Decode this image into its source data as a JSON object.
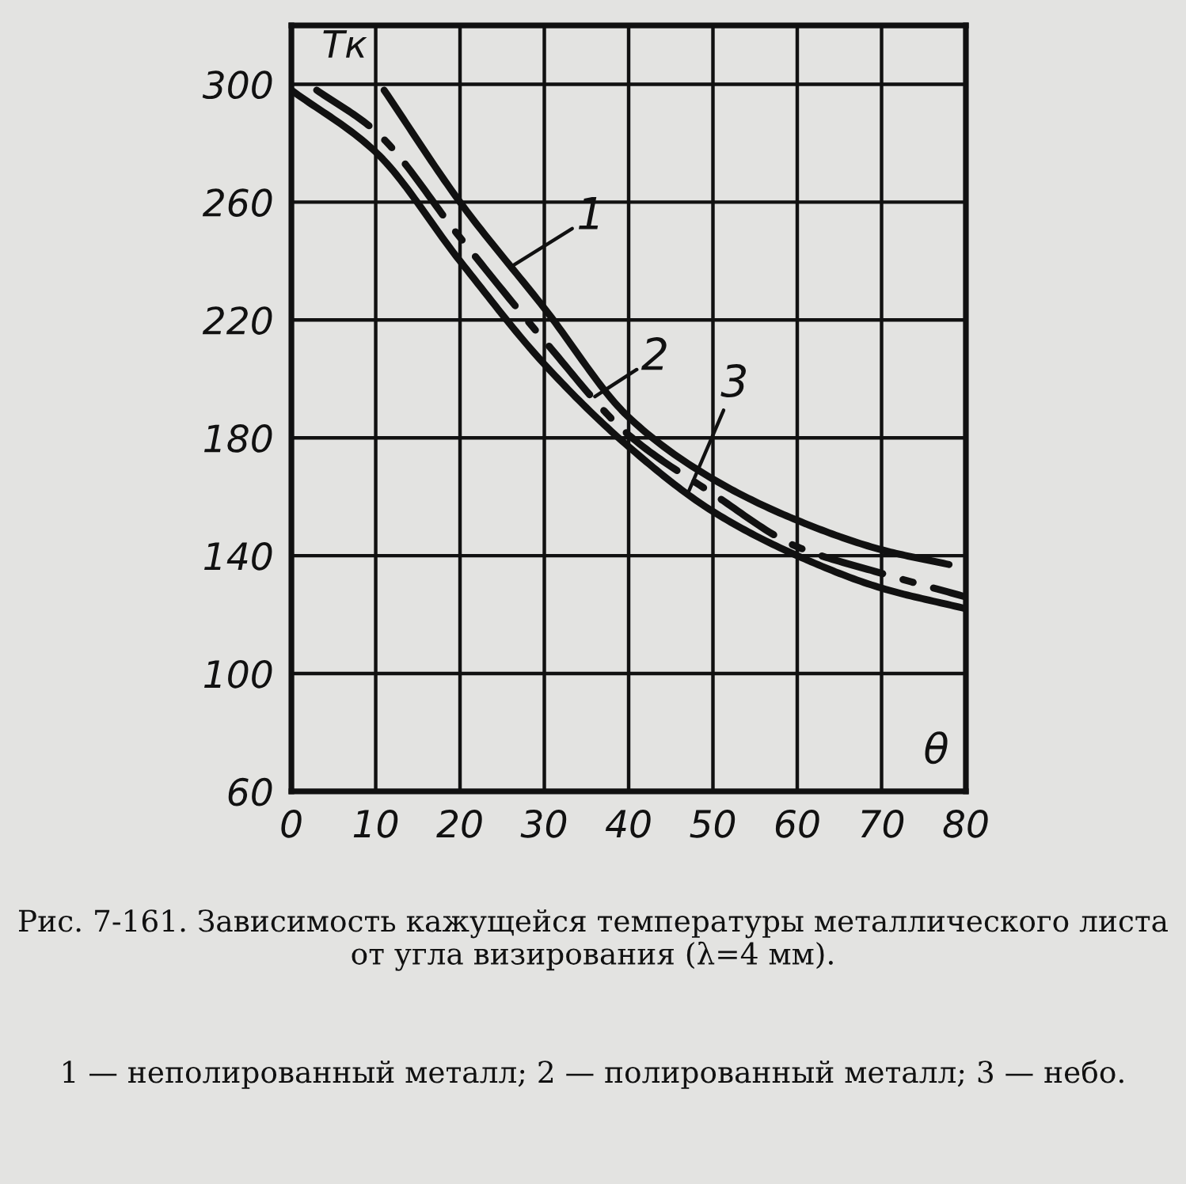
{
  "chart_data": {
    "type": "line",
    "xlabel": "θ",
    "ylabel": "Tк",
    "xlim": [
      0,
      80
    ],
    "xticks": [
      0,
      10,
      20,
      30,
      40,
      50,
      60,
      70,
      80
    ],
    "ylim": [
      60,
      320
    ],
    "yticks": [
      60,
      100,
      140,
      180,
      220,
      260,
      300
    ],
    "grid": true,
    "marker": "none",
    "series": [
      {
        "color": "#111111",
        "line_style": "solid",
        "x": [
          11,
          20,
          30,
          40,
          50,
          60,
          70,
          78
        ],
        "values": [
          298,
          260,
          224,
          187,
          166,
          152,
          142,
          137
        ]
      },
      {
        "color": "#111111",
        "line_style": "dashdot",
        "x": [
          3,
          10,
          20,
          30,
          40,
          50,
          60,
          70,
          80
        ],
        "values": [
          298,
          284,
          248,
          213,
          181,
          161,
          143,
          134,
          126
        ]
      },
      {
        "color": "#111111",
        "line_style": "solid",
        "x": [
          0,
          10,
          20,
          30,
          40,
          50,
          60,
          70,
          80
        ],
        "values": [
          298,
          277,
          240,
          205,
          177,
          155,
          140,
          129,
          122
        ]
      }
    ],
    "annotations": [
      {
        "text": "1",
        "x": 26,
        "y": 238
      },
      {
        "text": "2",
        "x": 36,
        "y": 194
      },
      {
        "text": "3",
        "x": 47,
        "y": 161
      },
      "Рис. 7-161. Зависимость кажущейся температуры металлического листа от угла визирования (λ=4 мм).",
      "1 — неполированный металл; 2 — полированный металл; 3 — небо."
    ]
  }
}
